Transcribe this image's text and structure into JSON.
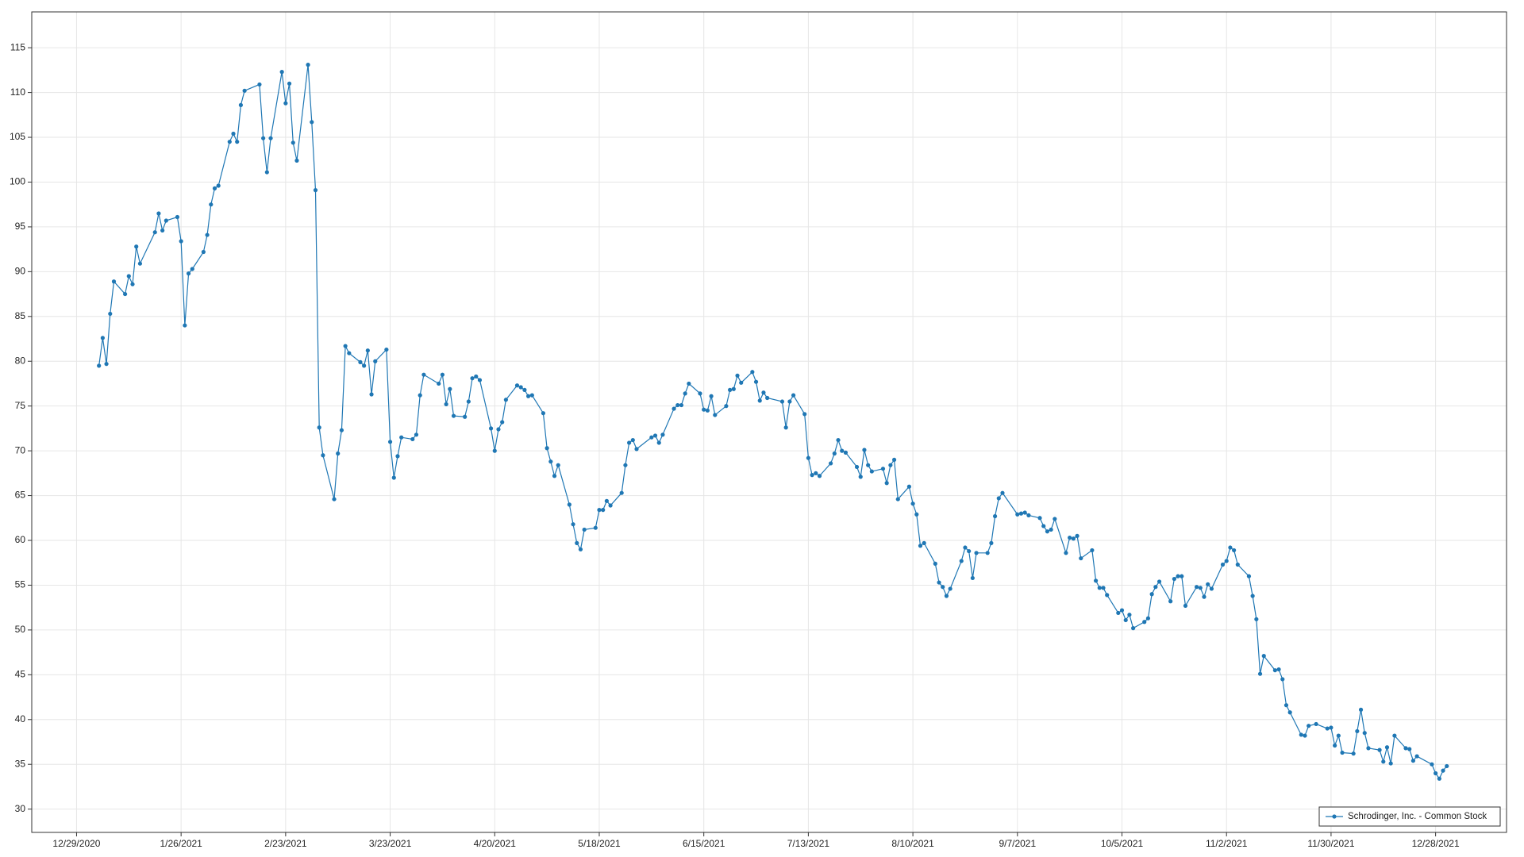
{
  "chart_data": {
    "type": "line",
    "x": [
      "2021-01-04",
      "2021-01-05",
      "2021-01-06",
      "2021-01-07",
      "2021-01-08",
      "2021-01-11",
      "2021-01-12",
      "2021-01-13",
      "2021-01-14",
      "2021-01-15",
      "2021-01-19",
      "2021-01-20",
      "2021-01-21",
      "2021-01-22",
      "2021-01-25",
      "2021-01-26",
      "2021-01-27",
      "2021-01-28",
      "2021-01-29",
      "2021-02-01",
      "2021-02-02",
      "2021-02-03",
      "2021-02-04",
      "2021-02-05",
      "2021-02-08",
      "2021-02-09",
      "2021-02-10",
      "2021-02-11",
      "2021-02-12",
      "2021-02-16",
      "2021-02-17",
      "2021-02-18",
      "2021-02-19",
      "2021-02-22",
      "2021-02-23",
      "2021-02-24",
      "2021-02-25",
      "2021-02-26",
      "2021-03-01",
      "2021-03-02",
      "2021-03-03",
      "2021-03-04",
      "2021-03-05",
      "2021-03-08",
      "2021-03-09",
      "2021-03-10",
      "2021-03-11",
      "2021-03-12",
      "2021-03-15",
      "2021-03-16",
      "2021-03-17",
      "2021-03-18",
      "2021-03-19",
      "2021-03-22",
      "2021-03-23",
      "2021-03-24",
      "2021-03-25",
      "2021-03-26",
      "2021-03-29",
      "2021-03-30",
      "2021-03-31",
      "2021-04-01",
      "2021-04-05",
      "2021-04-06",
      "2021-04-07",
      "2021-04-08",
      "2021-04-09",
      "2021-04-12",
      "2021-04-13",
      "2021-04-14",
      "2021-04-15",
      "2021-04-16",
      "2021-04-19",
      "2021-04-20",
      "2021-04-21",
      "2021-04-22",
      "2021-04-23",
      "2021-04-26",
      "2021-04-27",
      "2021-04-28",
      "2021-04-29",
      "2021-04-30",
      "2021-05-03",
      "2021-05-04",
      "2021-05-05",
      "2021-05-06",
      "2021-05-07",
      "2021-05-10",
      "2021-05-11",
      "2021-05-12",
      "2021-05-13",
      "2021-05-14",
      "2021-05-17",
      "2021-05-18",
      "2021-05-19",
      "2021-05-20",
      "2021-05-21",
      "2021-05-24",
      "2021-05-25",
      "2021-05-26",
      "2021-05-27",
      "2021-05-28",
      "2021-06-01",
      "2021-06-02",
      "2021-06-03",
      "2021-06-04",
      "2021-06-07",
      "2021-06-08",
      "2021-06-09",
      "2021-06-10",
      "2021-06-11",
      "2021-06-14",
      "2021-06-15",
      "2021-06-16",
      "2021-06-17",
      "2021-06-18",
      "2021-06-21",
      "2021-06-22",
      "2021-06-23",
      "2021-06-24",
      "2021-06-25",
      "2021-06-28",
      "2021-06-29",
      "2021-06-30",
      "2021-07-01",
      "2021-07-02",
      "2021-07-06",
      "2021-07-07",
      "2021-07-08",
      "2021-07-09",
      "2021-07-12",
      "2021-07-13",
      "2021-07-14",
      "2021-07-15",
      "2021-07-16",
      "2021-07-19",
      "2021-07-20",
      "2021-07-21",
      "2021-07-22",
      "2021-07-23",
      "2021-07-26",
      "2021-07-27",
      "2021-07-28",
      "2021-07-29",
      "2021-07-30",
      "2021-08-02",
      "2021-08-03",
      "2021-08-04",
      "2021-08-05",
      "2021-08-06",
      "2021-08-09",
      "2021-08-10",
      "2021-08-11",
      "2021-08-12",
      "2021-08-13",
      "2021-08-16",
      "2021-08-17",
      "2021-08-18",
      "2021-08-19",
      "2021-08-20",
      "2021-08-23",
      "2021-08-24",
      "2021-08-25",
      "2021-08-26",
      "2021-08-27",
      "2021-08-30",
      "2021-08-31",
      "2021-09-01",
      "2021-09-02",
      "2021-09-03",
      "2021-09-07",
      "2021-09-08",
      "2021-09-09",
      "2021-09-10",
      "2021-09-13",
      "2021-09-14",
      "2021-09-15",
      "2021-09-16",
      "2021-09-17",
      "2021-09-20",
      "2021-09-21",
      "2021-09-22",
      "2021-09-23",
      "2021-09-24",
      "2021-09-27",
      "2021-09-28",
      "2021-09-29",
      "2021-09-30",
      "2021-10-01",
      "2021-10-04",
      "2021-10-05",
      "2021-10-06",
      "2021-10-07",
      "2021-10-08",
      "2021-10-11",
      "2021-10-12",
      "2021-10-13",
      "2021-10-14",
      "2021-10-15",
      "2021-10-18",
      "2021-10-19",
      "2021-10-20",
      "2021-10-21",
      "2021-10-22",
      "2021-10-25",
      "2021-10-26",
      "2021-10-27",
      "2021-10-28",
      "2021-10-29",
      "2021-11-01",
      "2021-11-02",
      "2021-11-03",
      "2021-11-04",
      "2021-11-05",
      "2021-11-08",
      "2021-11-09",
      "2021-11-10",
      "2021-11-11",
      "2021-11-12",
      "2021-11-15",
      "2021-11-16",
      "2021-11-17",
      "2021-11-18",
      "2021-11-19",
      "2021-11-22",
      "2021-11-23",
      "2021-11-24",
      "2021-11-26",
      "2021-11-29",
      "2021-11-30",
      "2021-12-01",
      "2021-12-02",
      "2021-12-03",
      "2021-12-06",
      "2021-12-07",
      "2021-12-08",
      "2021-12-09",
      "2021-12-10",
      "2021-12-13",
      "2021-12-14",
      "2021-12-15",
      "2021-12-16",
      "2021-12-17",
      "2021-12-20",
      "2021-12-21",
      "2021-12-22",
      "2021-12-23",
      "2021-12-27",
      "2021-12-28",
      "2021-12-29",
      "2021-12-30",
      "2021-12-31"
    ],
    "series": [
      {
        "name": "Schrodinger, Inc. - Common Stock",
        "color": "#1f77b4",
        "values": [
          79.5,
          82.6,
          79.7,
          85.3,
          88.9,
          87.5,
          89.5,
          88.6,
          92.8,
          90.9,
          94.4,
          96.5,
          94.6,
          95.7,
          96.1,
          93.4,
          84.0,
          89.8,
          90.3,
          92.2,
          94.1,
          97.5,
          99.3,
          99.6,
          104.5,
          105.4,
          104.5,
          108.6,
          110.2,
          110.9,
          104.9,
          101.1,
          104.9,
          112.3,
          108.8,
          111.0,
          104.4,
          102.4,
          113.1,
          106.7,
          99.1,
          72.6,
          69.5,
          64.6,
          69.7,
          72.3,
          81.7,
          80.9,
          79.9,
          79.5,
          81.2,
          76.3,
          80.0,
          81.3,
          71.0,
          67.0,
          69.4,
          71.5,
          71.3,
          71.8,
          76.2,
          78.5,
          77.5,
          78.5,
          75.2,
          76.9,
          73.9,
          73.8,
          75.5,
          78.1,
          78.3,
          77.9,
          72.5,
          70.0,
          72.4,
          73.2,
          75.7,
          77.3,
          77.1,
          76.8,
          76.1,
          76.2,
          74.2,
          70.3,
          68.8,
          67.2,
          68.4,
          64.0,
          61.8,
          59.7,
          59.0,
          61.2,
          61.4,
          63.4,
          63.4,
          64.4,
          63.9,
          65.3,
          68.4,
          70.9,
          71.2,
          70.2,
          71.5,
          71.7,
          70.9,
          71.8,
          74.7,
          75.1,
          75.1,
          76.4,
          77.5,
          76.4,
          74.6,
          74.5,
          76.1,
          74.0,
          75.0,
          76.8,
          76.9,
          78.4,
          77.6,
          78.8,
          77.7,
          75.6,
          76.5,
          75.9,
          75.5,
          72.6,
          75.5,
          76.2,
          74.1,
          69.2,
          67.3,
          67.5,
          67.2,
          68.6,
          69.7,
          71.2,
          70.0,
          69.8,
          68.2,
          67.1,
          70.1,
          68.4,
          67.7,
          68.0,
          66.4,
          68.4,
          69.0,
          64.6,
          66.0,
          64.1,
          62.9,
          59.4,
          59.7,
          57.4,
          55.3,
          54.8,
          53.8,
          54.6,
          57.7,
          59.2,
          58.8,
          55.8,
          58.6,
          58.6,
          59.7,
          62.7,
          64.7,
          65.3,
          62.9,
          63.0,
          63.1,
          62.8,
          62.5,
          61.6,
          61.0,
          61.2,
          62.4,
          58.6,
          60.3,
          60.2,
          60.5,
          58.0,
          58.9,
          55.5,
          54.7,
          54.7,
          53.9,
          51.9,
          52.2,
          51.1,
          51.7,
          50.2,
          50.9,
          51.3,
          54.0,
          54.8,
          55.4,
          53.2,
          55.7,
          56.0,
          56.0,
          52.7,
          54.8,
          54.7,
          53.7,
          55.1,
          54.6,
          57.3,
          57.7,
          59.2,
          58.9,
          57.3,
          56.0,
          53.8,
          51.2,
          45.1,
          47.1,
          45.5,
          45.6,
          44.5,
          41.6,
          40.8,
          38.3,
          38.2,
          39.3,
          39.5,
          39.0,
          39.1,
          37.1,
          38.2,
          36.3,
          36.2,
          38.7,
          41.1,
          38.5,
          36.8,
          36.6,
          35.3,
          36.9,
          35.1,
          38.2,
          36.8,
          36.7,
          35.4,
          35.9,
          35.0,
          34.0,
          33.4,
          34.3,
          34.8
        ]
      }
    ],
    "xlim": [
      "2020-12-17",
      "2022-01-16"
    ],
    "xticks": [
      {
        "value": "2020-12-29",
        "label": "12/29/2020"
      },
      {
        "value": "2021-01-26",
        "label": "1/26/2021"
      },
      {
        "value": "2021-02-23",
        "label": "2/23/2021"
      },
      {
        "value": "2021-03-23",
        "label": "3/23/2021"
      },
      {
        "value": "2021-04-20",
        "label": "4/20/2021"
      },
      {
        "value": "2021-05-18",
        "label": "5/18/2021"
      },
      {
        "value": "2021-06-15",
        "label": "6/15/2021"
      },
      {
        "value": "2021-07-13",
        "label": "7/13/2021"
      },
      {
        "value": "2021-08-10",
        "label": "8/10/2021"
      },
      {
        "value": "2021-09-07",
        "label": "9/7/2021"
      },
      {
        "value": "2021-10-05",
        "label": "10/5/2021"
      },
      {
        "value": "2021-11-02",
        "label": "11/2/2021"
      },
      {
        "value": "2021-11-30",
        "label": "11/30/2021"
      },
      {
        "value": "2021-12-28",
        "label": "12/28/2021"
      }
    ],
    "ylim": [
      27.4,
      119
    ],
    "yticks": [
      30,
      35,
      40,
      45,
      50,
      55,
      60,
      65,
      70,
      75,
      80,
      85,
      90,
      95,
      100,
      105,
      110,
      115
    ],
    "grid": true,
    "legend": "lower right"
  }
}
